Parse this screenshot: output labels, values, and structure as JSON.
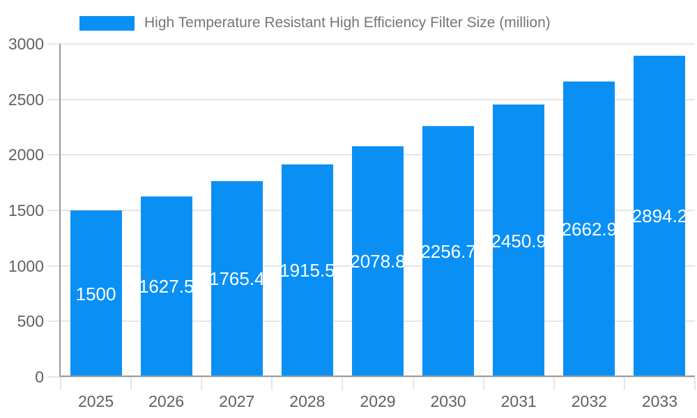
{
  "chart_data": {
    "type": "bar",
    "title": "High Temperature Resistant High Efficiency Filter Size (million)",
    "legend": {
      "position": "top",
      "label": "High Temperature Resistant High Efficiency Filter Size (million)"
    },
    "categories": [
      "2025",
      "2026",
      "2027",
      "2028",
      "2029",
      "2030",
      "2031",
      "2032",
      "2033"
    ],
    "series": [
      {
        "name": "High Temperature Resistant High Efficiency Filter Size (million)",
        "values": [
          1500,
          1627.5,
          1765.4,
          1915.5,
          2078.8,
          2256.7,
          2450.9,
          2662.9,
          2894.2
        ]
      }
    ],
    "value_labels": [
      "1500",
      "1627.5",
      "1765.4",
      "1915.5",
      "2078.8",
      "2256.7",
      "2450.9",
      "2662.9",
      "2894.2"
    ],
    "xlabel": "",
    "ylabel": "",
    "ylim": [
      0,
      3000
    ],
    "yticks": [
      0,
      500,
      1000,
      1500,
      2000,
      2500,
      3000
    ],
    "grid": true,
    "colors": {
      "bar": "#0a90f5",
      "value_label": "#ffffff",
      "axis_label": "#616161",
      "legend_text": "#757575",
      "grid_line": "#e6e6e6",
      "axis_line": "#9a9a9a",
      "background": "#ffffff"
    }
  }
}
